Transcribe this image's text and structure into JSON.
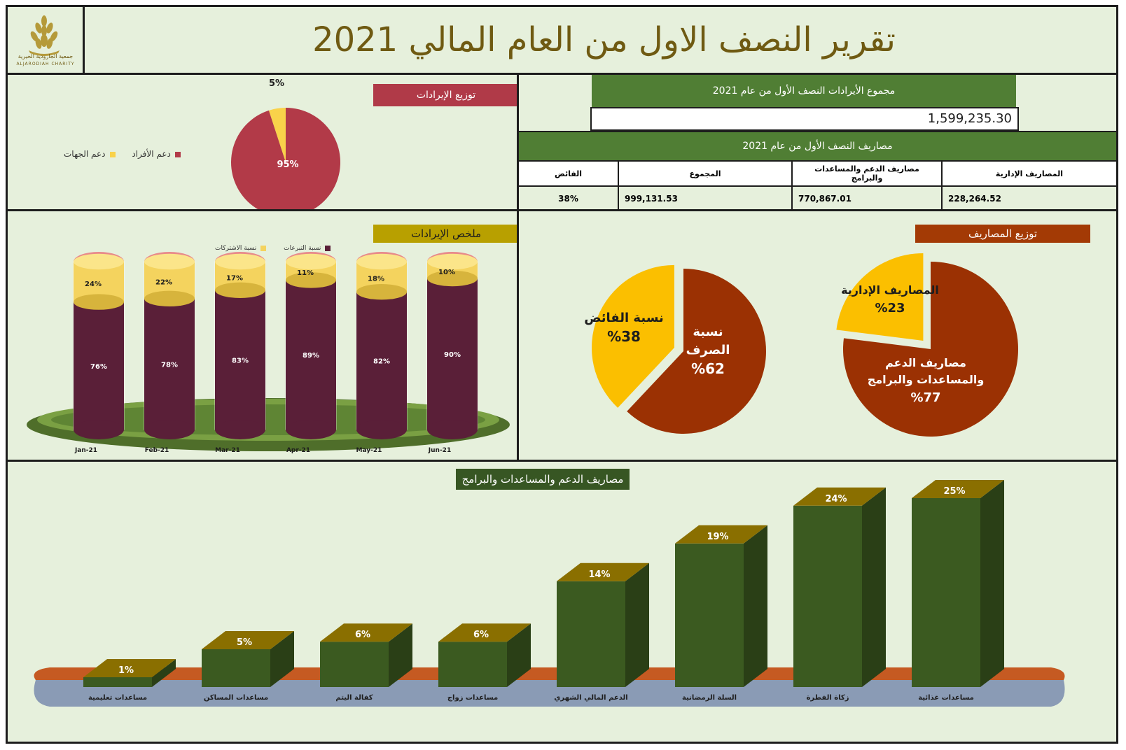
{
  "header": {
    "title": "تقرير النصف الاول من العام المالي 2021",
    "logo_text": "جمعية الجارودية الخيرية",
    "logo_text_en": "ALJARODIAH CHARITY"
  },
  "revenue_total": {
    "label": "مجموع الأيرادات  النصف الأول من عام 2021",
    "value": "1,599,235.30"
  },
  "expenses_table": {
    "title": "مصاريف النصف الأول من عام 2021",
    "headers": [
      "المصاريف الإدارية",
      "مصاريف الدعم والمساعدات والبرامج",
      "المجموع",
      "الفائض"
    ],
    "values": [
      "228,264.52",
      "770,867.01",
      "999,131.53",
      "38%"
    ]
  },
  "colors": {
    "green_band": "#507e34",
    "red_band": "#b03a48",
    "olive_band": "#b8a000",
    "rust_band": "#a33a05",
    "dark_green_band": "#375623",
    "maroon": "#5a1f38",
    "yellow": "#f4d35e",
    "pie_red": "#b23a48",
    "pie_yellow": "#f9d24a",
    "rust_pie": "#9b3103",
    "gold_pie": "#fbbf00",
    "bar_green": "#3b5a20",
    "bar_top": "#8a6f00",
    "header_text": "#6f5a12"
  },
  "chart_data": [
    {
      "id": "revenue_distribution",
      "type": "pie",
      "title": "توزيع الإيرادات",
      "labels": [
        "دعم الأفراد",
        "دعم الجهات"
      ],
      "values": [
        95,
        5
      ],
      "data_labels": [
        "95%",
        "5%"
      ]
    },
    {
      "id": "revenue_summary",
      "type": "bar",
      "stacked": true,
      "title": "ملخص الإيرادات",
      "categories": [
        "Jan-21",
        "Feb-21",
        "Mar-21",
        "Apr-21",
        "May-21",
        "Jun-21"
      ],
      "series": [
        {
          "name": "نسبة التبرعات",
          "values": [
            76,
            78,
            83,
            89,
            82,
            90
          ]
        },
        {
          "name": "نسبة الاشتركات",
          "values": [
            24,
            22,
            17,
            11,
            18,
            10
          ]
        }
      ],
      "ylim": [
        0,
        100
      ],
      "legend": "top"
    },
    {
      "id": "spend_vs_surplus",
      "type": "pie",
      "title": "توزيع المصاريف",
      "labels": [
        "نسبة الصرف",
        "نسبة الفائض"
      ],
      "values": [
        62,
        38
      ],
      "data_labels": [
        "%62",
        "%38"
      ]
    },
    {
      "id": "expense_distribution",
      "type": "pie",
      "labels": [
        "مصاريف الدعم والمساعدات والبرامج",
        "المصاريف الإدارية"
      ],
      "values": [
        77,
        23
      ],
      "data_labels": [
        "%77",
        "%23"
      ]
    },
    {
      "id": "support_expenses",
      "type": "bar",
      "title": "مصاريف الدعم والمساعدات والبرامج",
      "categories": [
        "مساعدات تعليمية",
        "مساعدات المساكن",
        "كفالة اليتم",
        "مساعدات زواج",
        "الدعم المالي الشهري",
        "السلة الرمضانية",
        "زكاة الفطرة",
        "مساعدات غذائية"
      ],
      "values": [
        1,
        5,
        6,
        6,
        14,
        19,
        24,
        25
      ],
      "data_labels": [
        "1%",
        "5%",
        "6%",
        "6%",
        "14%",
        "19%",
        "24%",
        "25%"
      ]
    }
  ]
}
